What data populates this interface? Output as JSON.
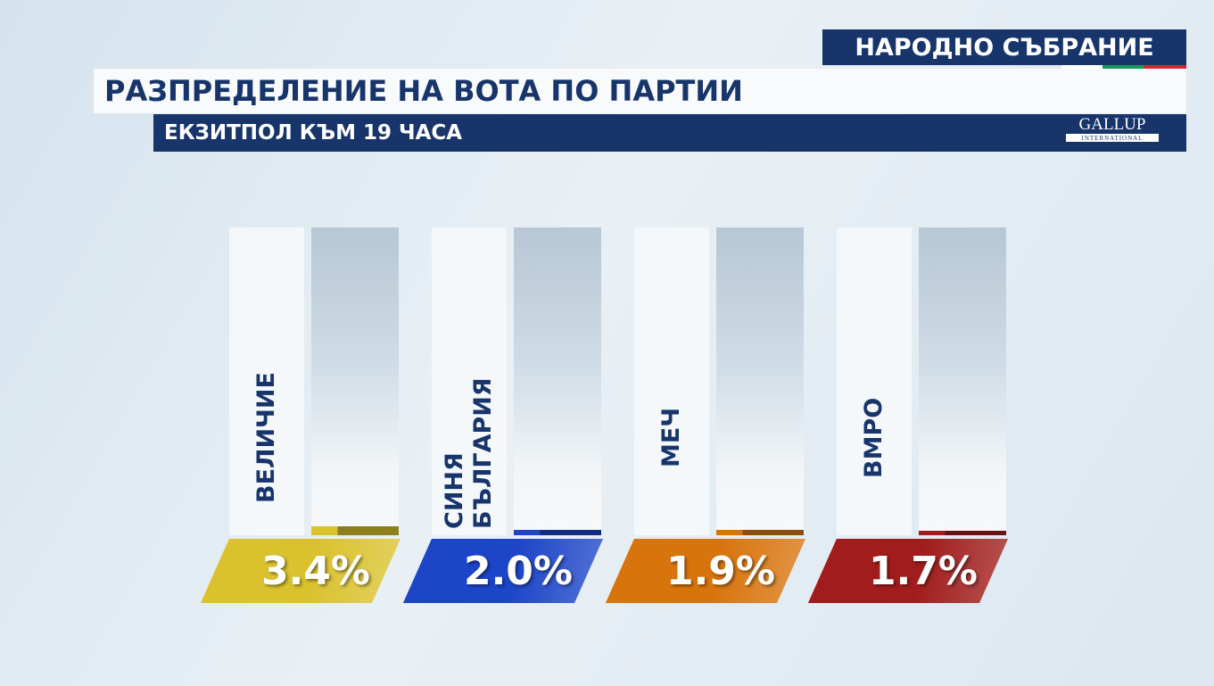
{
  "header": "НАРОДНО СЪБРАНИЕ",
  "logo": {
    "name": "GALLUP",
    "tagline": "INTERNATIONAL"
  },
  "chart_data": {
    "type": "bar",
    "title": "РАЗПРЕДЕЛЕНИЕ НА ВОТА ПО ПАРТИИ",
    "subtitle": "ЕКЗИТПОЛ КЪМ 19 ЧАСА",
    "categories": [
      "ВЕЛИЧИЕ",
      "СИНЯ БЪЛГАРИЯ",
      "МЕЧ",
      "ВМРО"
    ],
    "values": [
      3.4,
      2.0,
      1.9,
      1.7
    ],
    "value_labels": [
      "3.4%",
      "2.0%",
      "1.9%",
      "1.7%"
    ],
    "colors": [
      "#d9c22e",
      "#1c45c8",
      "#d8740c",
      "#a11c1c"
    ]
  }
}
